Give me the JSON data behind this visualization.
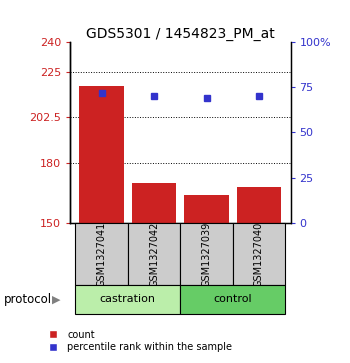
{
  "title": "GDS5301 / 1454823_PM_at",
  "samples": [
    "GSM1327041",
    "GSM1327042",
    "GSM1327039",
    "GSM1327040"
  ],
  "protocols": [
    "castration",
    "castration",
    "control",
    "control"
  ],
  "bar_values": [
    218,
    170,
    164,
    168
  ],
  "scatter_values": [
    72,
    70,
    69,
    70
  ],
  "ylim_left": [
    150,
    240
  ],
  "ylim_right": [
    0,
    100
  ],
  "yticks_left": [
    150,
    180,
    202.5,
    225,
    240
  ],
  "ytick_labels_left": [
    "150",
    "180",
    "202.5",
    "225",
    "240"
  ],
  "yticks_right": [
    0,
    25,
    50,
    75,
    100
  ],
  "ytick_labels_right": [
    "0",
    "25",
    "50",
    "75",
    "100%"
  ],
  "hlines": [
    225,
    202.5,
    180
  ],
  "bar_color": "#cc2222",
  "scatter_color": "#3333cc",
  "bar_bottom": 150,
  "castration_color": "#bbeeaa",
  "control_color": "#66cc66",
  "protocol_label": "protocol",
  "legend_bar_label": "count",
  "legend_scatter_label": "percentile rank within the sample",
  "title_fontsize": 10,
  "tick_fontsize": 8,
  "sample_box_color": "#cccccc",
  "bar_width": 0.85
}
